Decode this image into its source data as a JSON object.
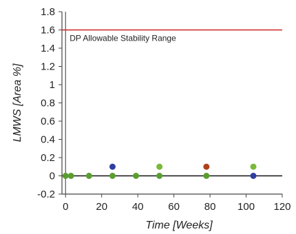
{
  "chart_data": {
    "type": "scatter",
    "xlabel": "Time [Weeks]",
    "ylabel": "LMWS [Area %]",
    "xlim": [
      -2,
      120
    ],
    "ylim": [
      -0.2,
      1.8
    ],
    "x_ticks": [
      0,
      20,
      40,
      60,
      80,
      100,
      120
    ],
    "y_ticks": [
      -0.2,
      0,
      0.2,
      0.4,
      0.6,
      0.8,
      1,
      1.2,
      1.4,
      1.6,
      1.8
    ],
    "y_tick_labels": [
      "-0.2",
      "0",
      "0.2",
      "0.4",
      "0.6",
      "0.8",
      "1",
      "1.2",
      "1.4",
      "1.6",
      "1.8"
    ],
    "grid": false,
    "reference_line": {
      "y": 1.6,
      "label": "DP Allowable Stability Range",
      "color": "#cc2222"
    },
    "zero_line": {
      "y": 0,
      "color": "#111111"
    },
    "points": [
      {
        "x": 0,
        "y": 0,
        "color": "#5a9e2f"
      },
      {
        "x": 3,
        "y": 0,
        "color": "#5a9e2f"
      },
      {
        "x": 13,
        "y": 0,
        "color": "#5a9e2f"
      },
      {
        "x": 26,
        "y": 0.1,
        "color": "#2f3ea0"
      },
      {
        "x": 26,
        "y": 0,
        "color": "#5a9e2f"
      },
      {
        "x": 39,
        "y": 0,
        "color": "#5a9e2f"
      },
      {
        "x": 52,
        "y": 0.1,
        "color": "#7ab83a"
      },
      {
        "x": 52,
        "y": 0,
        "color": "#5a9e2f"
      },
      {
        "x": 78,
        "y": 0.1,
        "color": "#b0411d"
      },
      {
        "x": 78,
        "y": 0,
        "color": "#5a9e2f"
      },
      {
        "x": 104,
        "y": 0.1,
        "color": "#7ab83a"
      },
      {
        "x": 104,
        "y": 0,
        "color": "#2f3ea0"
      }
    ]
  }
}
